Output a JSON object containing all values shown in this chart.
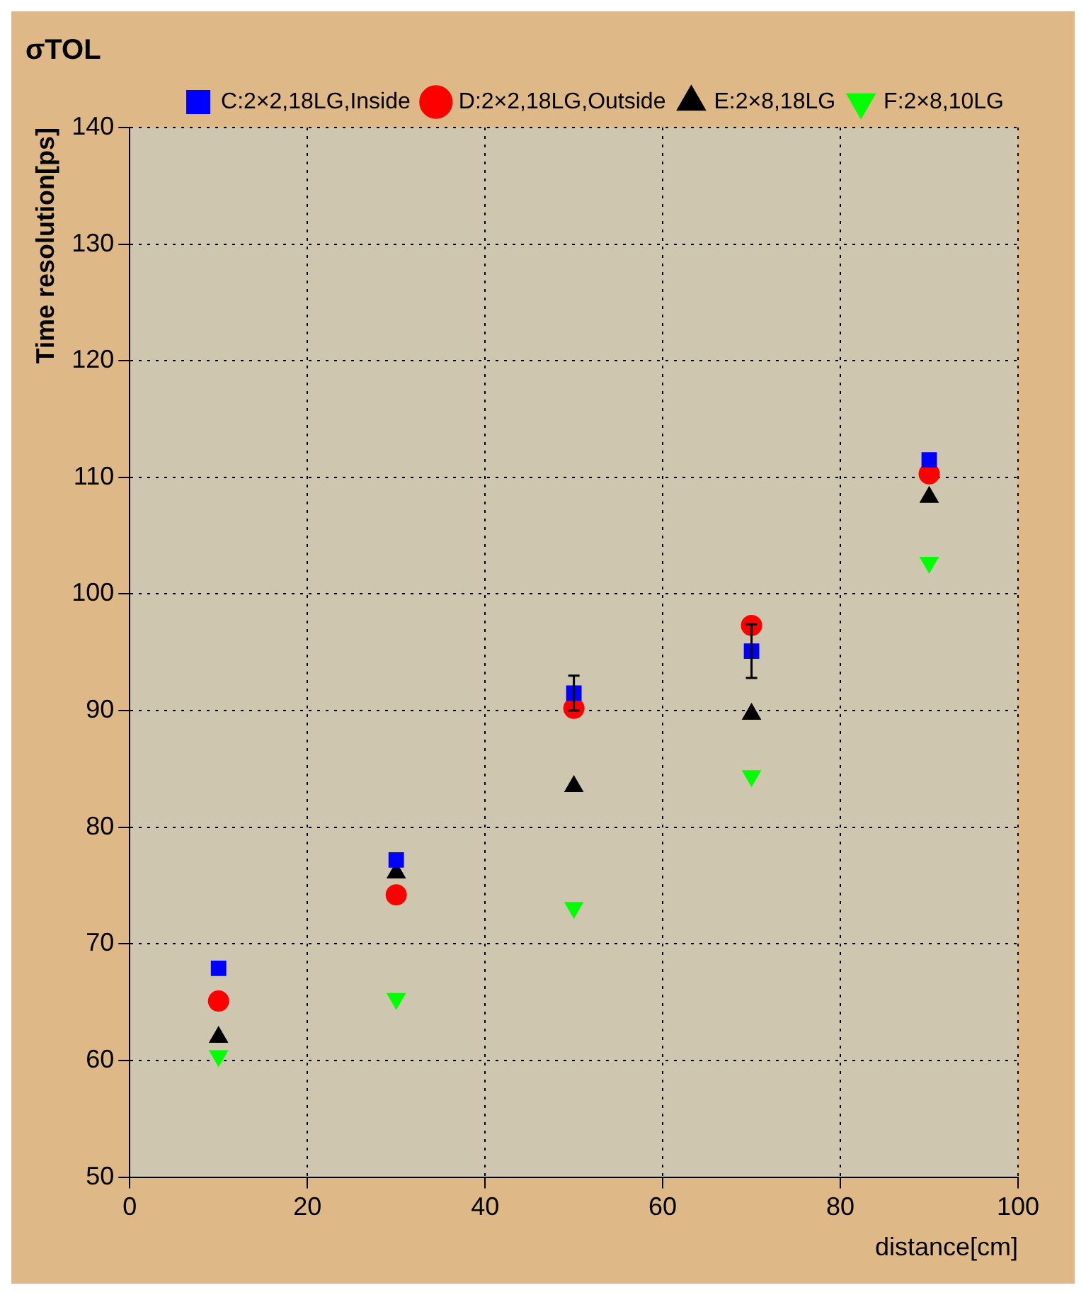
{
  "chart_data": {
    "type": "scatter",
    "title": "σTOL",
    "xlabel": "distance[cm]",
    "ylabel": "Time resolution[ps]",
    "x": [
      10,
      30,
      50,
      70,
      90
    ],
    "series": [
      {
        "name": "C:2×2,18LG,Inside",
        "color": "#0000ff",
        "marker": "square",
        "values": [
          67.9,
          77.2,
          91.5,
          95.1,
          111.5
        ],
        "errors": [
          null,
          null,
          1.5,
          2.3,
          null
        ]
      },
      {
        "name": "D:2×2,18LG,Outside",
        "color": "#ff0000",
        "marker": "circle",
        "values": [
          65.1,
          74.2,
          90.2,
          97.3,
          110.3
        ]
      },
      {
        "name": "E:2×8,18LG",
        "color": "#000000",
        "marker": "triangle",
        "values": [
          62,
          76.1,
          83.5,
          89.7,
          108.3
        ]
      },
      {
        "name": "F:2×8,10LG",
        "color": "#00ff00",
        "marker": "triangle-down",
        "values": [
          60.4,
          65.3,
          73.1,
          84.4,
          102.7
        ]
      }
    ],
    "xlim": [
      0,
      100
    ],
    "xticks": [
      0,
      20,
      40,
      60,
      80,
      100
    ],
    "ylim": [
      50,
      140
    ],
    "yticks": [
      50,
      60,
      70,
      80,
      90,
      100,
      110,
      120,
      130,
      140
    ],
    "grid": true,
    "legend": "top right"
  }
}
